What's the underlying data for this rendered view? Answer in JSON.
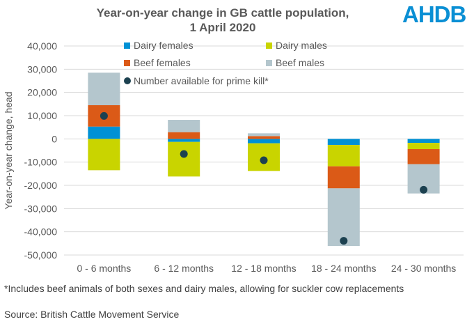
{
  "logo": "AHDB",
  "footnote": "*Includes beef animals of both sexes and dairy males, allowing for suckler cow replacements",
  "source": "Source: British Cattle Movement Service",
  "chart_data": {
    "type": "bar",
    "stacked": true,
    "title": "Year-on-year change in GB cattle population, 1 April 2020",
    "title_lines": [
      "Year-on-year change in GB cattle population,",
      "1 April 2020"
    ],
    "ylabel": "Year-on-year change, head",
    "xlabel": "",
    "ylim": [
      -50000,
      40000
    ],
    "yticks": [
      40000,
      30000,
      20000,
      10000,
      0,
      -10000,
      -20000,
      -30000,
      -40000,
      -50000
    ],
    "ytick_labels": [
      "40,000",
      "30,000",
      "20,000",
      "10,000",
      "0",
      "-10,000",
      "-20,000",
      "-30,000",
      "-40,000",
      "-50,000"
    ],
    "grid": true,
    "legend_placement": "top",
    "categories": [
      "0 - 6 months",
      "6 - 12 months",
      "12 - 18 months",
      "18 - 24 months",
      "24 - 30 months"
    ],
    "series": [
      {
        "name": "Dairy females",
        "color": "#0091d5",
        "values": [
          5300,
          -1300,
          -1900,
          -2600,
          -1700
        ]
      },
      {
        "name": "Dairy males",
        "color": "#c9d400",
        "values": [
          -13500,
          -14900,
          -11900,
          -9200,
          -2700
        ]
      },
      {
        "name": "Beef females",
        "color": "#db5a17",
        "values": [
          9200,
          2900,
          1200,
          -9500,
          -6500
        ]
      },
      {
        "name": "Beef males",
        "color": "#b4c6cd",
        "values": [
          14000,
          5300,
          1200,
          -24800,
          -12600
        ]
      }
    ],
    "points": {
      "name": "Number available for prime kill*",
      "color": "#1c4150",
      "values": [
        9900,
        -6500,
        -9200,
        -43900,
        -21900
      ]
    }
  }
}
